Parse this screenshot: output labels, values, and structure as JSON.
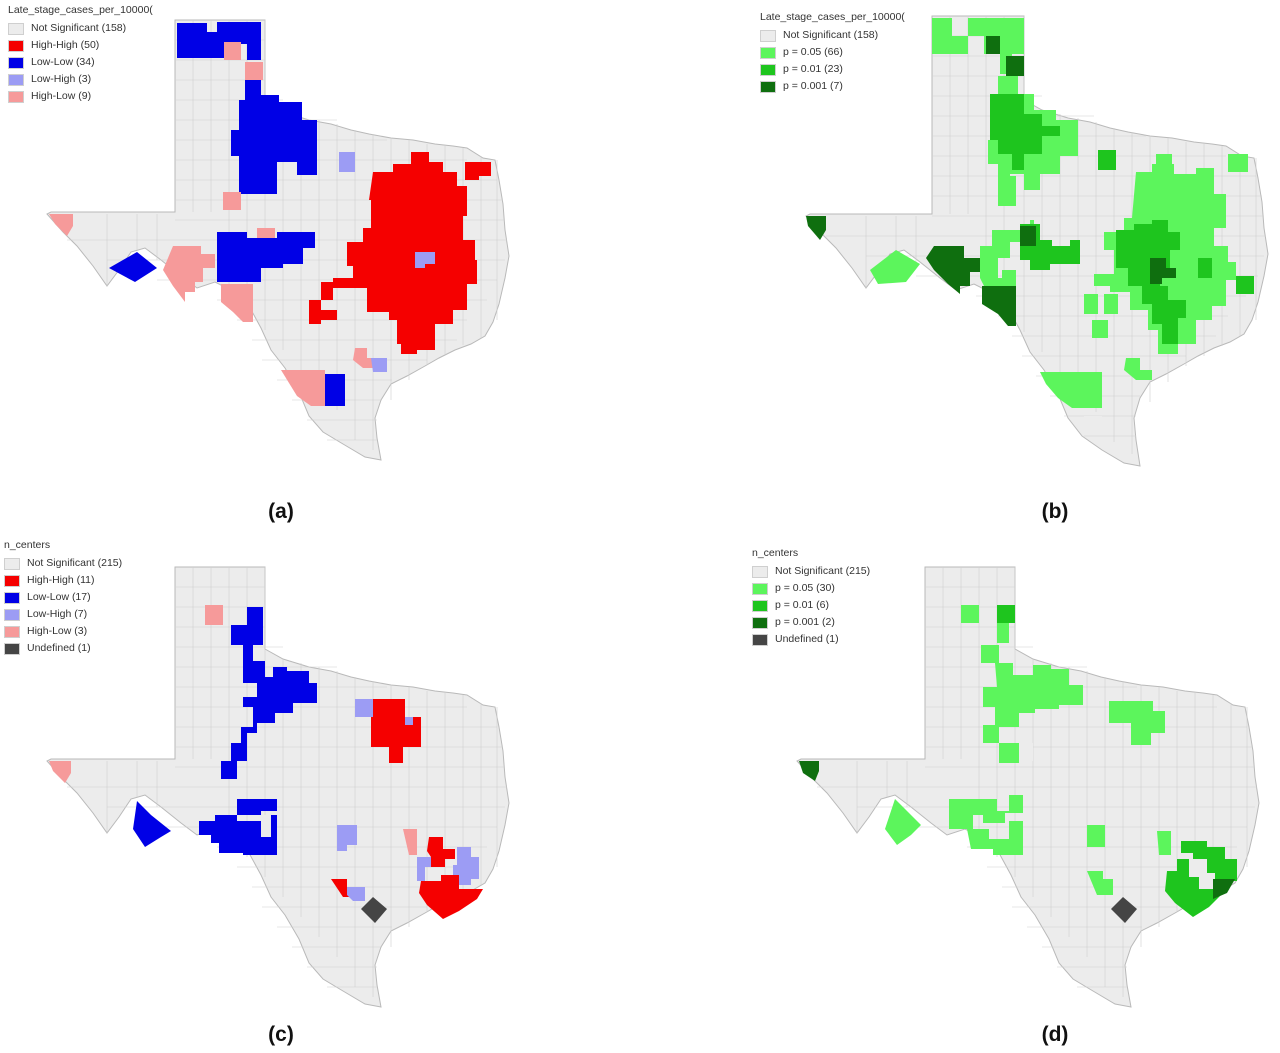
{
  "colors": {
    "not_significant": "#ececec",
    "border": "#b9b9b9",
    "high_high": "#f50000",
    "low_low": "#0000e6",
    "low_high": "#9c9cf4",
    "high_low": "#f69a9a",
    "undefined": "#454545",
    "p05": "#5cf55c",
    "p01": "#1ec51e",
    "p001": "#0f6f0f"
  },
  "panels": [
    {
      "id": "a",
      "caption": "(a)",
      "legend": {
        "title": "Late_stage_cases_per_10000(",
        "items": [
          {
            "label": "Not Significant (158)",
            "color": "#ececec"
          },
          {
            "label": "High-High (50)",
            "color": "#f50000"
          },
          {
            "label": "Low-Low (34)",
            "color": "#0000e6"
          },
          {
            "label": "Low-High (3)",
            "color": "#9c9cf4"
          },
          {
            "label": "High-Low (9)",
            "color": "#f69a9a"
          }
        ]
      }
    },
    {
      "id": "b",
      "caption": "(b)",
      "legend": {
        "title": "Late_stage_cases_per_10000(",
        "items": [
          {
            "label": "Not Significant (158)",
            "color": "#ececec"
          },
          {
            "label": "p = 0.05 (66)",
            "color": "#5cf55c"
          },
          {
            "label": "p = 0.01 (23)",
            "color": "#1ec51e"
          },
          {
            "label": "p = 0.001 (7)",
            "color": "#0f6f0f"
          }
        ]
      }
    },
    {
      "id": "c",
      "caption": "(c)",
      "legend": {
        "title": "n_centers",
        "items": [
          {
            "label": "Not Significant (215)",
            "color": "#ececec"
          },
          {
            "label": "High-High (11)",
            "color": "#f50000"
          },
          {
            "label": "Low-Low (17)",
            "color": "#0000e6"
          },
          {
            "label": "Low-High (7)",
            "color": "#9c9cf4"
          },
          {
            "label": "High-Low (3)",
            "color": "#f69a9a"
          },
          {
            "label": "Undefined (1)",
            "color": "#454545"
          }
        ]
      }
    },
    {
      "id": "d",
      "caption": "(d)",
      "legend": {
        "title": "n_centers",
        "items": [
          {
            "label": "Not Significant (215)",
            "color": "#ececec"
          },
          {
            "label": "p = 0.05 (30)",
            "color": "#5cf55c"
          },
          {
            "label": "p = 0.01 (6)",
            "color": "#1ec51e"
          },
          {
            "label": "p = 0.001 (2)",
            "color": "#0f6f0f"
          },
          {
            "label": "Undefined (1)",
            "color": "#454545"
          }
        ]
      }
    }
  ]
}
